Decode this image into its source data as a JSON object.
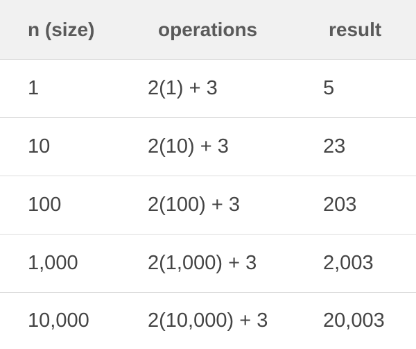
{
  "table": {
    "headers": [
      "n (size)",
      "operations",
      "result"
    ],
    "rows": [
      [
        "1",
        "2(1) + 3",
        "5"
      ],
      [
        "10",
        "2(10) + 3",
        "23"
      ],
      [
        "100",
        "2(100) + 3",
        "203"
      ],
      [
        "1,000",
        "2(1,000) + 3",
        "2,003"
      ],
      [
        "10,000",
        "2(10,000) + 3",
        "20,003"
      ]
    ]
  },
  "colors": {
    "header_background": "#f1f1f1",
    "text": "#444444",
    "row_divider": "#dcdcdc"
  }
}
